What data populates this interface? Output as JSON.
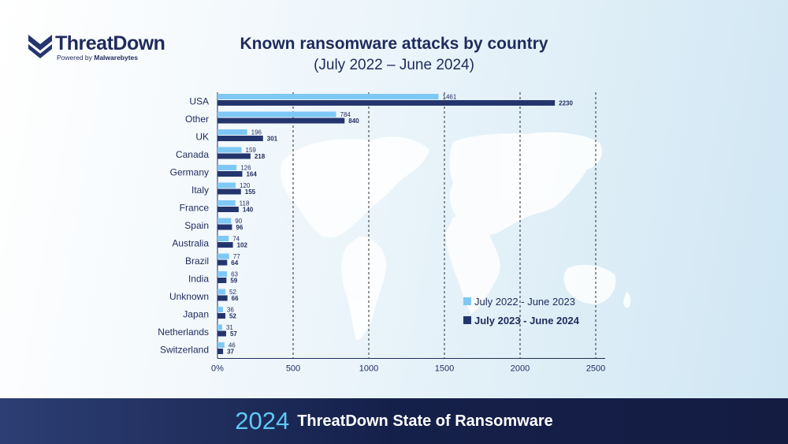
{
  "brand": {
    "name": "ThreatDown",
    "powered_prefix": "Powered by ",
    "powered_brand": "Malwarebytes"
  },
  "colors": {
    "series_2023": "#7fc8f5",
    "series_2024": "#24356e",
    "axis_text": "#1f2b5c"
  },
  "legend": {
    "item_2023": "July 2022 - June 2023",
    "item_2024": "July 2023 - June 2024"
  },
  "footer": {
    "year": "2024",
    "text": "ThreatDown State of Ransomware"
  },
  "chart_data": {
    "type": "bar",
    "orientation": "horizontal",
    "title": "Known ransomware attacks by country",
    "subtitle": "(July 2022 – June 2024)",
    "categories": [
      "USA",
      "Other",
      "UK",
      "Canada",
      "Germany",
      "Italy",
      "France",
      "Spain",
      "Australia",
      "Brazil",
      "India",
      "Unknown",
      "Japan",
      "Netherlands",
      "Switzerland"
    ],
    "series": [
      {
        "name": "July 2022 - June 2023",
        "values": [
          1461,
          784,
          196,
          159,
          126,
          120,
          118,
          90,
          74,
          77,
          63,
          52,
          36,
          31,
          46
        ]
      },
      {
        "name": "July 2023 - June 2024",
        "values": [
          2230,
          840,
          301,
          218,
          164,
          155,
          140,
          96,
          102,
          64,
          59,
          66,
          52,
          57,
          37
        ]
      }
    ],
    "xticks": [
      "0%",
      "500",
      "1000",
      "1500",
      "2000",
      "2500"
    ],
    "xtick_values": [
      0,
      500,
      1000,
      1500,
      2000,
      2500
    ],
    "xlim": [
      0,
      2500
    ],
    "grid": "vertical dashed",
    "legend_position": "bottom-right"
  }
}
